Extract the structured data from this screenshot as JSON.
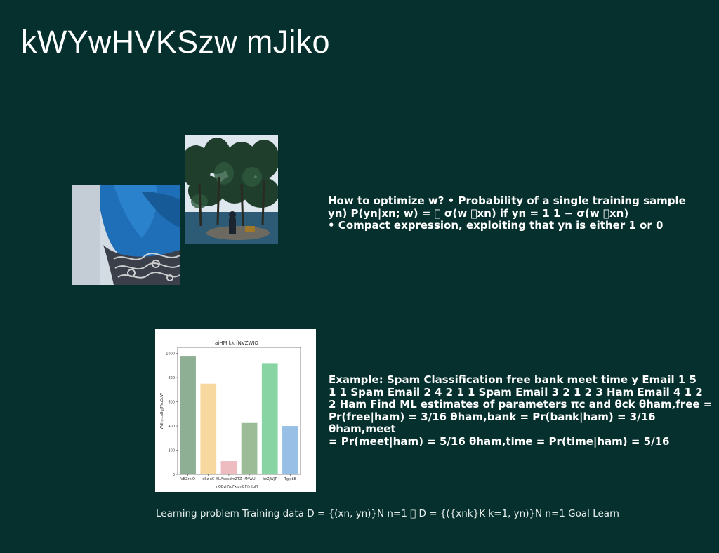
{
  "slide": {
    "title": "kWYwHVKSzw mJiko",
    "text_block_1": "How to optimize w? • Probability of a single training sample\nyn) P(yn|xn; w) = \u0000 σ(w \u0000xn) if yn = 1 1 − σ(w \u0000xn)\n• Compact expression, exploiting that yn is either 1 or 0",
    "text_block_2": "Example: Spam Classification free bank meet time y Email 1 5\n1 1 Spam Email 2 4 2 1 1 Spam Email 3 2 1 2 3 Ham Email 4 1 2\n2 Ham Find ML estimates of parameters πc and θck θham,free =\nPr(free|ham) = 3/16 θham,bank = Pr(bank|ham) = 3/16 θham,meet\n= Pr(meet|ham) = 5/16 θham,time = Pr(time|ham) = 5/16",
    "footer": "Learning problem Training data D = {(xn, yn)}N n=1 \u0000 D = {({xnk}K k=1, yn)}N n=1 Goal Learn"
  },
  "chart_data": {
    "type": "bar",
    "title": "aiHM kk fNVZWJQ",
    "xlabel": "vJQEvHYdFxjpnGFYrKqPl",
    "ylabel": "WdlnJrcnBgjTNuOoW",
    "categories": [
      "VBZrkIQ",
      "eSz uC",
      "XUAVdsdmZTZ",
      "MMWU",
      "kzZjWjT",
      "TgxJbB"
    ],
    "values": [
      980,
      750,
      110,
      425,
      920,
      400
    ],
    "colors": [
      "#8faf94",
      "#f7d9a0",
      "#ecbcc0",
      "#9cbc98",
      "#88d4a2",
      "#98c0e6"
    ],
    "ylim": [
      0,
      1050
    ],
    "yticks": [
      0,
      200,
      400,
      600,
      800,
      1000
    ],
    "grid": false
  }
}
